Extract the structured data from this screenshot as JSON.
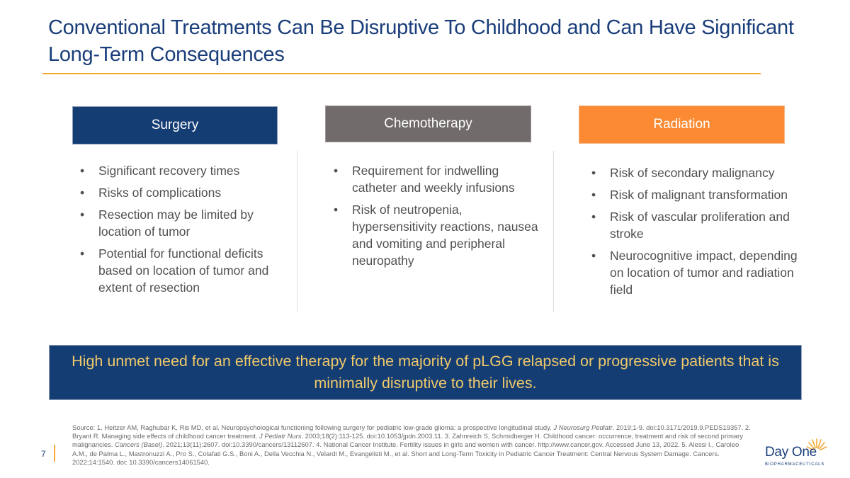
{
  "slide": {
    "title": "Conventional Treatments Can Be Disruptive To Childhood and Can Have Significant Long-Term Consequences",
    "page_number": "7"
  },
  "columns": [
    {
      "header": "Surgery",
      "bullets": [
        "Significant recovery times",
        "Risks of complications",
        "Resection may be limited by location of tumor",
        "Potential for functional deficits based on location of tumor and extent of resection"
      ]
    },
    {
      "header": "Chemotherapy",
      "bullets": [
        "Requirement for indwelling catheter and weekly infusions",
        "Risk of neutropenia, hypersensitivity reactions, nausea and vomiting and peripheral neuropathy"
      ]
    },
    {
      "header": "Radiation",
      "bullets": [
        "Risk of secondary malignancy",
        "Risk of malignant transformation",
        "Risk of vascular proliferation and stroke",
        "Neurocognitive impact, depending on location of tumor and radiation field"
      ]
    }
  ],
  "callout": "High unmet need for an effective therapy for the majority of pLGG relapsed or progressive patients that is minimally disruptive to their lives.",
  "source": {
    "s1": "Source: 1. Heitzer AM, Raghubar K, Ris MD, et al. Neuropsychological functioning following surgery for pediatric low-grade glioma: a prospective longitudinal study. ",
    "j1": "J Neurosurg Pediatr",
    "s2": ". 2019;1-9. doi:10.3171/2019.9.PEDS19357. 2. Bryant R. Managing side effects of childhood cancer treatment. ",
    "j2": "J Pediatr Nurs",
    "s3": ". 2003;18(2):113-125. doi:10.1053/jpdn.2003.11. 3. Zahnreich S, Schmidberger H. Childhood cancer: occurrence, treatment and risk of second primary malignancies. ",
    "j3": "Cancers (Basel)",
    "s4": ". 2021;13(11):2607. doi:10.3390/cancers/13112607. 4. National Cancer Institute. Fertility issues in girls and women with cancer. http://www.cancer.gov. Accessed June 13, 2022. 5. Alessi I., Caroleo A.M., de Palma L., Mastronuzzi A., Pro S., Colafati G.S., Boni A., Della Vecchia N., Velardi M., Evangelisti M., et al. Short and Long-Term Toxicity in Pediatric Cancer Treatment: Central Nervous System Damage. Cancers. 2022;14:1540. doi: 10.3390/cancers14061540."
  },
  "logo": {
    "name": "Day One",
    "tagline": "BIOPHARMACEUTICALS"
  },
  "colors": {
    "title": "#1a3e7a",
    "surgery": "#143d73",
    "chemotherapy": "#726b6b",
    "radiation": "#fb8a33",
    "accent": "#f3a93a",
    "callout_text": "#f0c96a"
  }
}
